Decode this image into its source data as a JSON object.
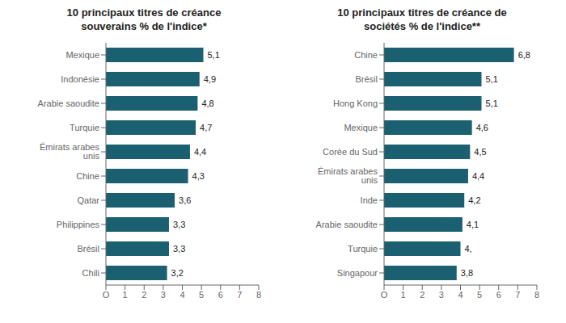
{
  "chart_data": [
    {
      "type": "bar",
      "orientation": "horizontal",
      "title": "10 principaux titres de créance\nsouverains % de l'indice*",
      "categories": [
        "Mexique",
        "Indonésie",
        "Arabie saoudite",
        "Turquie",
        "Émirats arabes unis",
        "Chine",
        "Qatar",
        "Philippines",
        "Brésil",
        "Chili"
      ],
      "values": [
        5.1,
        4.9,
        4.8,
        4.7,
        4.4,
        4.3,
        3.6,
        3.3,
        3.3,
        3.2
      ],
      "value_labels": [
        "5,1",
        "4,9",
        "4,8",
        "4,7",
        "4,4",
        "4,3",
        "3,6",
        "3,3",
        "3,3",
        "3,2"
      ],
      "data_labels": true,
      "color": "#1a6070",
      "xlim": [
        0,
        8
      ],
      "xticks": [
        {
          "value": 0,
          "label": "O"
        },
        1,
        2,
        3,
        4,
        5,
        6,
        7,
        8
      ],
      "grid": false
    },
    {
      "type": "bar",
      "orientation": "horizontal",
      "title": "10 principaux titres de créance de\nsociétés % de l'indice**",
      "categories": [
        "Chine",
        "Brésil",
        "Hong Kong",
        "Mexique",
        "Corée du Sud",
        "Émirats arabes unis",
        "Inde",
        "Arabie saoudite",
        "Turquie",
        "Singapour"
      ],
      "values": [
        6.8,
        5.1,
        5.1,
        4.6,
        4.5,
        4.4,
        4.2,
        4.1,
        4.0,
        3.8
      ],
      "value_labels": [
        "6,8",
        "5,1",
        "5,1",
        "4,6",
        "4,5",
        "4,4",
        "4,2",
        "4,1",
        "4,",
        "3,8"
      ],
      "data_labels": true,
      "color": "#1a6070",
      "xlim": [
        0,
        8
      ],
      "xticks": [
        {
          "value": 0,
          "label": "O"
        },
        1,
        2,
        3,
        4,
        5,
        6,
        7,
        8
      ],
      "grid": false
    }
  ]
}
